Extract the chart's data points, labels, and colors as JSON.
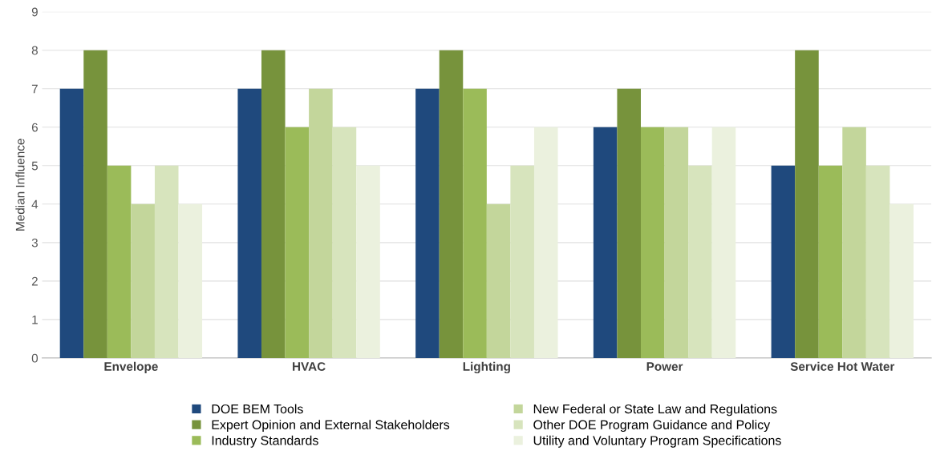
{
  "chart_data": {
    "type": "bar",
    "ylabel": "Median Influence",
    "categories": [
      "Envelope",
      "HVAC",
      "Lighting",
      "Power",
      "Service Hot Water"
    ],
    "series": [
      {
        "name": "DOE BEM Tools",
        "color": "#1f497d",
        "values": [
          7,
          7,
          7,
          6,
          5
        ]
      },
      {
        "name": "Expert Opinion and External Stakeholders",
        "color": "#77933c",
        "values": [
          8,
          8,
          8,
          7,
          8
        ]
      },
      {
        "name": "Industry Standards",
        "color": "#9bbb59",
        "values": [
          5,
          6,
          7,
          6,
          5
        ]
      },
      {
        "name": "New Federal or State Law and Regulations",
        "color": "#c3d69b",
        "values": [
          4,
          7,
          4,
          6,
          6
        ]
      },
      {
        "name": "Other DOE Program Guidance and Policy",
        "color": "#d7e4bd",
        "values": [
          5,
          6,
          5,
          5,
          5
        ]
      },
      {
        "name": "Utility and Voluntary Program Specifications",
        "color": "#ebf1de",
        "values": [
          4,
          5,
          6,
          6,
          4
        ]
      }
    ],
    "ylim": [
      0,
      9
    ],
    "yticks": [
      0,
      1,
      2,
      3,
      4,
      5,
      6,
      7,
      8,
      9
    ],
    "grid": "y",
    "legend": "bottom"
  }
}
